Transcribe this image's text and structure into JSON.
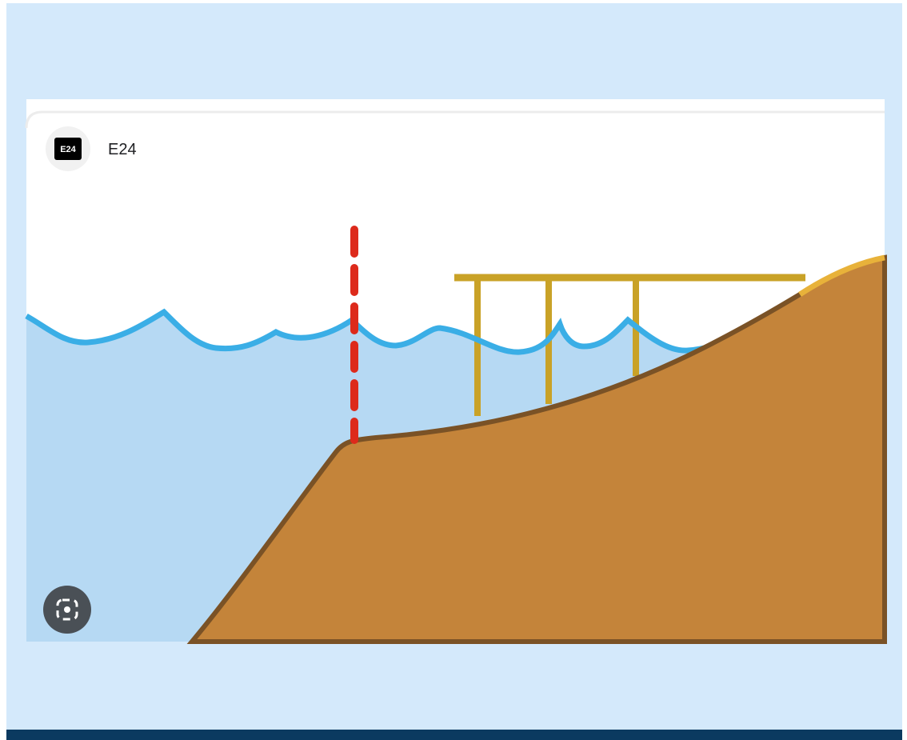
{
  "source": {
    "logo": "E24",
    "name": "E24"
  }
}
